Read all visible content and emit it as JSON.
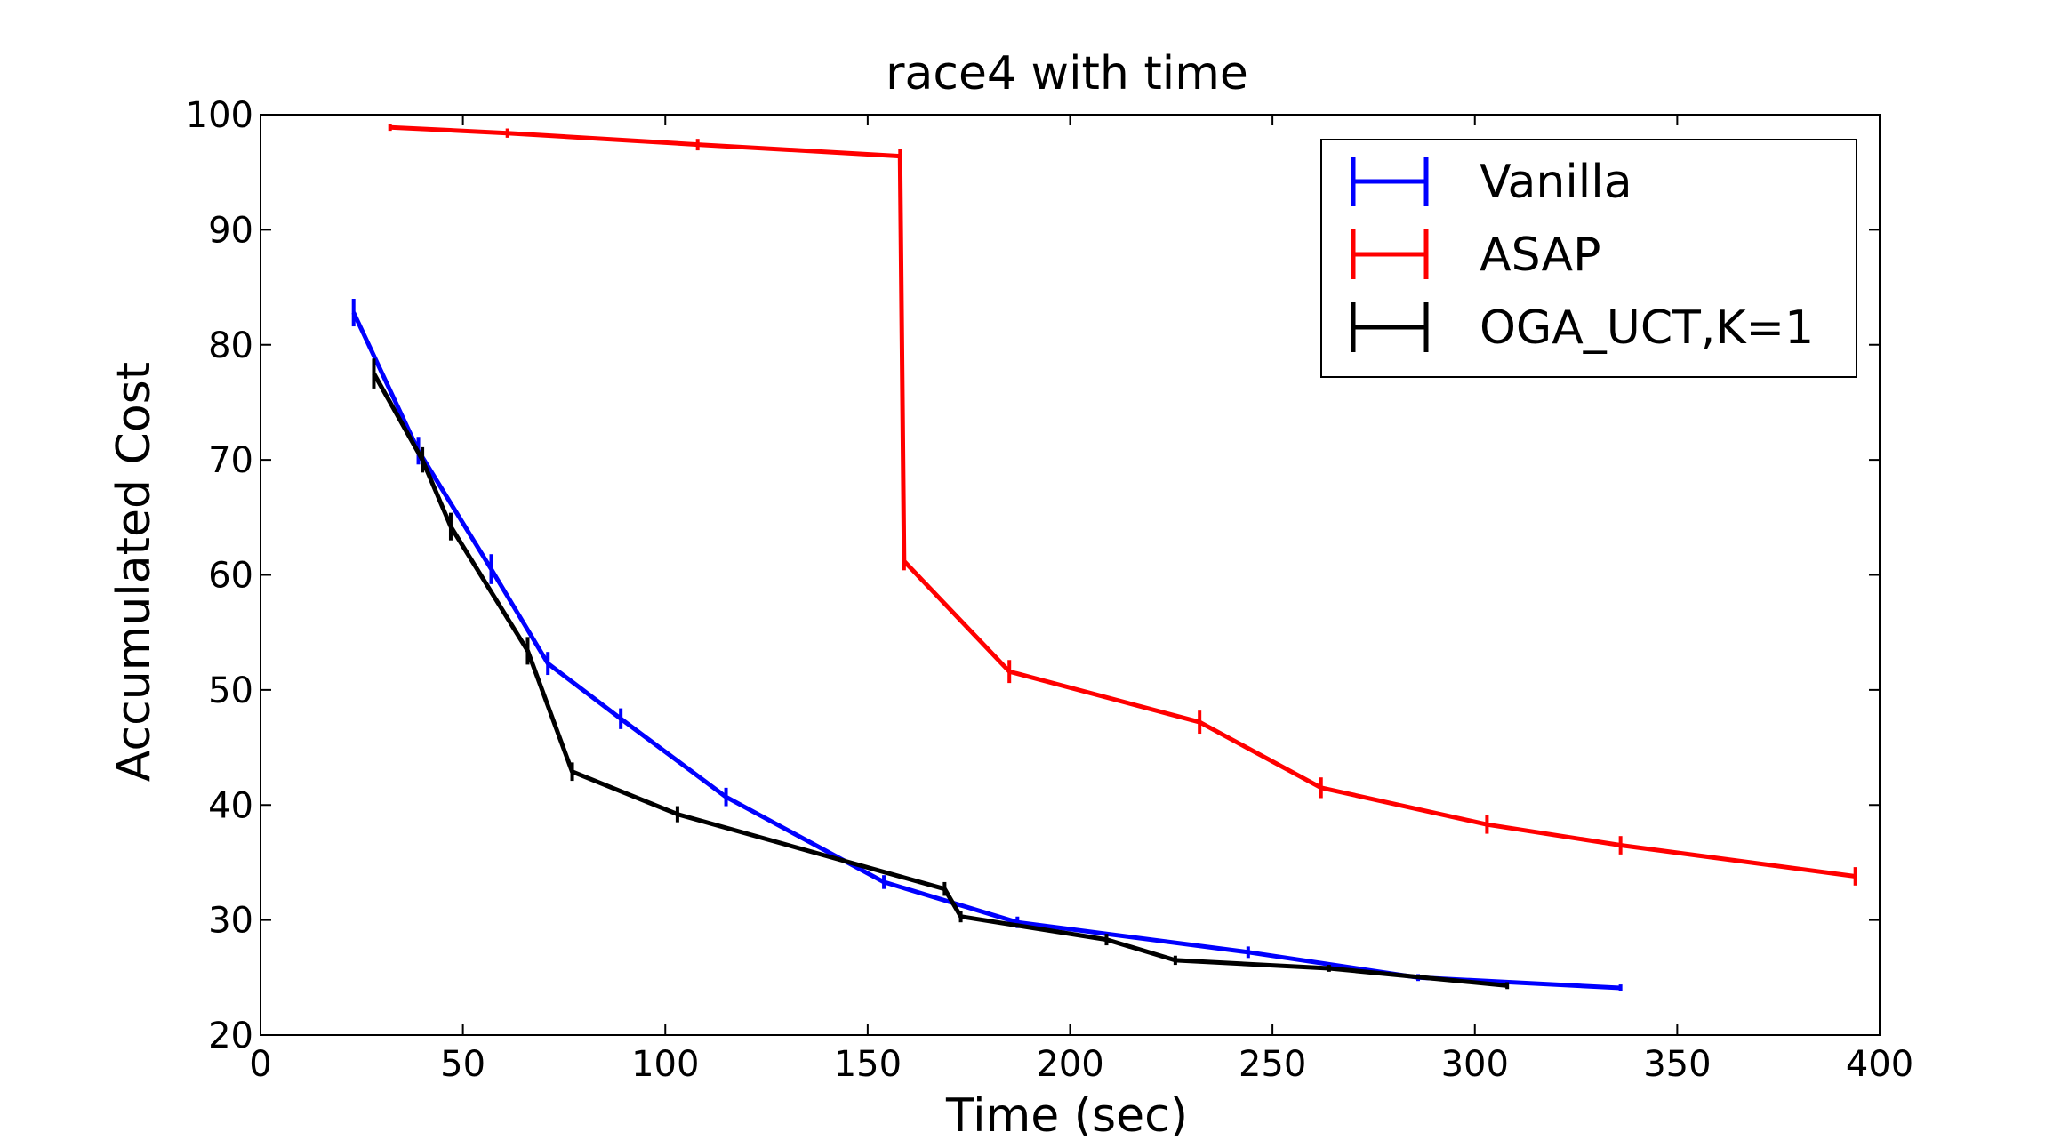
{
  "chart_data": {
    "type": "line",
    "title": "race4 with time",
    "xlabel": "Time (sec)",
    "ylabel": "Accumulated Cost",
    "xlim": [
      0,
      400
    ],
    "ylim": [
      20,
      100
    ],
    "xticks": [
      0,
      50,
      100,
      150,
      200,
      250,
      300,
      350,
      400
    ],
    "yticks": [
      20,
      30,
      40,
      50,
      60,
      70,
      80,
      90,
      100
    ],
    "grid": false,
    "legend_position": "top-right",
    "series": [
      {
        "name": "Vanilla",
        "color": "#0000ff",
        "points": [
          {
            "x": 23,
            "y": 82.8,
            "err": 1.2
          },
          {
            "x": 39,
            "y": 70.8,
            "err": 1.2
          },
          {
            "x": 57,
            "y": 60.5,
            "err": 1.3
          },
          {
            "x": 71,
            "y": 52.3,
            "err": 1.0
          },
          {
            "x": 89,
            "y": 47.5,
            "err": 0.9
          },
          {
            "x": 115,
            "y": 40.7,
            "err": 0.8
          },
          {
            "x": 154,
            "y": 33.3,
            "err": 0.6
          },
          {
            "x": 187,
            "y": 29.8,
            "err": 0.5
          },
          {
            "x": 244,
            "y": 27.2,
            "err": 0.5
          },
          {
            "x": 286,
            "y": 25.0,
            "err": 0.3
          },
          {
            "x": 336,
            "y": 24.1,
            "err": 0.3
          }
        ]
      },
      {
        "name": "ASAP",
        "color": "#ff0000",
        "points": [
          {
            "x": 32,
            "y": 98.9,
            "err": 0.3
          },
          {
            "x": 61,
            "y": 98.4,
            "err": 0.4
          },
          {
            "x": 108,
            "y": 97.4,
            "err": 0.5
          },
          {
            "x": 158,
            "y": 96.4,
            "err": 0.6
          },
          {
            "x": 159,
            "y": 61.2,
            "err": 0.8
          },
          {
            "x": 185,
            "y": 51.6,
            "err": 1.0
          },
          {
            "x": 232,
            "y": 47.2,
            "err": 1.0
          },
          {
            "x": 262,
            "y": 41.5,
            "err": 0.9
          },
          {
            "x": 303,
            "y": 38.3,
            "err": 0.8
          },
          {
            "x": 336,
            "y": 36.5,
            "err": 0.8
          },
          {
            "x": 394,
            "y": 33.8,
            "err": 0.8
          }
        ]
      },
      {
        "name": "OGA_UCT,K=1",
        "color": "#000000",
        "points": [
          {
            "x": 28,
            "y": 77.5,
            "err": 1.3
          },
          {
            "x": 40,
            "y": 70.0,
            "err": 1.1
          },
          {
            "x": 47,
            "y": 64.2,
            "err": 1.2
          },
          {
            "x": 66,
            "y": 53.4,
            "err": 1.2
          },
          {
            "x": 77,
            "y": 42.9,
            "err": 0.8
          },
          {
            "x": 103,
            "y": 39.2,
            "err": 0.7
          },
          {
            "x": 169,
            "y": 32.7,
            "err": 0.6
          },
          {
            "x": 173,
            "y": 30.3,
            "err": 0.5
          },
          {
            "x": 209,
            "y": 28.3,
            "err": 0.5
          },
          {
            "x": 226,
            "y": 26.5,
            "err": 0.4
          },
          {
            "x": 264,
            "y": 25.8,
            "err": 0.3
          },
          {
            "x": 308,
            "y": 24.3,
            "err": 0.3
          }
        ]
      }
    ]
  }
}
